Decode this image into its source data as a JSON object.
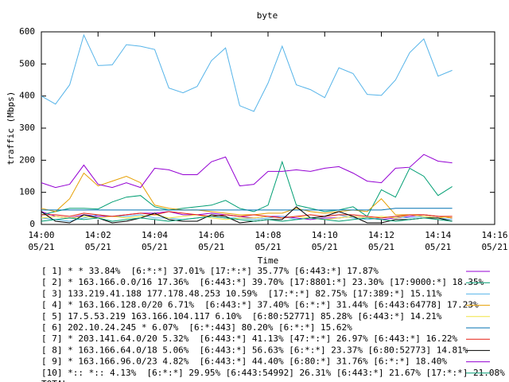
{
  "chart_data": {
    "type": "line",
    "title": "byte",
    "xlabel": "Time",
    "ylabel": "traffic (Mbps)",
    "x": [
      0,
      0.5,
      1,
      1.5,
      2,
      2.5,
      3,
      3.5,
      4,
      4.5,
      5,
      5.5,
      6,
      6.5,
      7,
      7.5,
      8,
      8.5,
      9,
      9.5,
      10,
      10.5,
      11,
      11.5,
      12,
      12.5,
      13,
      13.5,
      14,
      14.5
    ],
    "xlim": [
      0,
      16
    ],
    "xticks": [
      {
        "value": 0,
        "label": "14:00\n05/21"
      },
      {
        "value": 2,
        "label": "14:02\n05/21"
      },
      {
        "value": 4,
        "label": "14:04\n05/21"
      },
      {
        "value": 6,
        "label": "14:06\n05/21"
      },
      {
        "value": 8,
        "label": "14:08\n05/21"
      },
      {
        "value": 10,
        "label": "14:10\n05/21"
      },
      {
        "value": 12,
        "label": "14:12\n05/21"
      },
      {
        "value": 14,
        "label": "14:14\n05/21"
      },
      {
        "value": 16,
        "label": "14:16\n05/21"
      }
    ],
    "ylim": [
      0,
      600
    ],
    "yticks": [
      0,
      100,
      200,
      300,
      400,
      500,
      600
    ],
    "series": [
      {
        "name": "[ 1] * * 33.84%  [6:*:*] 37.01% [17:*:*] 35.77% [6:443:*] 17.87%",
        "color": "#9400d3",
        "values": [
          40,
          25,
          20,
          30,
          25,
          25,
          30,
          35,
          35,
          40,
          30,
          30,
          35,
          30,
          25,
          20,
          25,
          25,
          20,
          15,
          20,
          20,
          25,
          20,
          15,
          20,
          25,
          30,
          25,
          20
        ]
      },
      {
        "name": "[ 2] * 163.166.0.0/16 17.36%  [6:443:*] 39.70% [17:8801:*] 23.30% [17:9000:*] 18.35%",
        "color": "#009e73",
        "values": [
          30,
          40,
          50,
          50,
          48,
          70,
          85,
          90,
          55,
          45,
          50,
          55,
          60,
          75,
          50,
          40,
          60,
          195,
          60,
          50,
          40,
          45,
          55,
          25,
          108,
          85,
          175,
          150,
          90,
          118
        ]
      },
      {
        "name": "[ 3] 133.219.41.188 177.178.48.253 10.59%  [17:*:*] 82.75% [17:389:*] 15.11%",
        "color": "#56b4e9",
        "values": [
          20,
          15,
          10,
          20,
          30,
          25,
          25,
          30,
          20,
          20,
          15,
          20,
          25,
          20,
          20,
          15,
          20,
          25,
          15,
          20,
          25,
          30,
          20,
          15,
          20,
          25,
          20,
          25,
          20,
          15
        ]
      },
      {
        "name": "[ 4] * 163.166.128.0/20 6.71%  [6:443:*] 37.40% [6:*:*] 31.44% [6:443:64778] 17.23%",
        "color": "#e69f00",
        "values": [
          50,
          40,
          80,
          160,
          120,
          135,
          150,
          130,
          60,
          50,
          45,
          45,
          40,
          35,
          30,
          30,
          35,
          35,
          50,
          40,
          35,
          40,
          45,
          40,
          80,
          30,
          30,
          30,
          25,
          20
        ]
      },
      {
        "name": "[ 5] 17.5.53.219 163.166.104.117 6.10%  [6:80:52771] 85.28% [6:443:*] 14.21%",
        "color": "#f0e442",
        "values": [
          20,
          25,
          20,
          25,
          20,
          25,
          20,
          25,
          30,
          20,
          25,
          30,
          20,
          15,
          20,
          20,
          25,
          20,
          25,
          20,
          15,
          20,
          25,
          20,
          25,
          20,
          30,
          25,
          20,
          25
        ]
      },
      {
        "name": "[ 6] 202.10.24.245 * 6.07%  [6:*:443] 80.20% [6:*:*] 15.62%",
        "color": "#0072b2",
        "values": [
          45,
          45,
          45,
          45,
          45,
          45,
          45,
          45,
          45,
          45,
          45,
          45,
          45,
          45,
          45,
          45,
          45,
          45,
          45,
          45,
          45,
          45,
          45,
          45,
          45,
          50,
          50,
          50,
          50,
          50
        ]
      },
      {
        "name": "[ 7] * 203.141.64.0/20 5.32%  [6:443:*] 41.13% [47:*:*] 26.97% [6:443:*] 16.22%",
        "color": "#e51e10",
        "values": [
          30,
          30,
          25,
          35,
          30,
          25,
          30,
          35,
          30,
          40,
          35,
          30,
          25,
          30,
          25,
          30,
          25,
          20,
          25,
          30,
          25,
          30,
          30,
          25,
          20,
          25,
          30,
          30,
          25,
          25
        ]
      },
      {
        "name": "[ 8] * 163.166.64.0/18 5.06%  [6:443:*] 56.63% [6:*:*] 23.37% [6:80:52773] 14.81%",
        "color": "#000000",
        "values": [
          40,
          10,
          5,
          30,
          20,
          5,
          10,
          20,
          35,
          15,
          10,
          10,
          30,
          25,
          5,
          10,
          15,
          15,
          55,
          20,
          25,
          40,
          25,
          5,
          5,
          15,
          15,
          20,
          20,
          10
        ]
      },
      {
        "name": "[ 9] * 163.166.96.0/23 4.82%  [6:443:*] 44.40% [6:80:*] 31.76% [6:*:*] 18.40%",
        "color": "#9400d3",
        "values": [
          130,
          115,
          125,
          185,
          125,
          115,
          130,
          115,
          175,
          170,
          155,
          155,
          195,
          210,
          120,
          125,
          165,
          165,
          170,
          165,
          175,
          180,
          160,
          135,
          130,
          175,
          178,
          218,
          197,
          192
        ]
      },
      {
        "name": "[10] *:: *:: 4.13%  [6:*:*] 29.95% [6:443:54992] 26.31% [6:443:*] 21.67% [17:*:*] 21.08%",
        "color": "#009e73",
        "values": [
          10,
          15,
          20,
          15,
          20,
          10,
          15,
          20,
          15,
          10,
          15,
          20,
          25,
          20,
          15,
          10,
          15,
          10,
          15,
          20,
          15,
          10,
          15,
          20,
          15,
          10,
          15,
          20,
          15,
          10
        ]
      },
      {
        "name": "TOTAL",
        "color": "#56b4e9",
        "values": [
          400,
          375,
          435,
          590,
          495,
          497,
          560,
          555,
          545,
          425,
          410,
          430,
          510,
          550,
          370,
          352,
          440,
          555,
          435,
          420,
          395,
          488,
          470,
          405,
          402,
          450,
          535,
          578,
          462,
          480
        ]
      }
    ]
  }
}
